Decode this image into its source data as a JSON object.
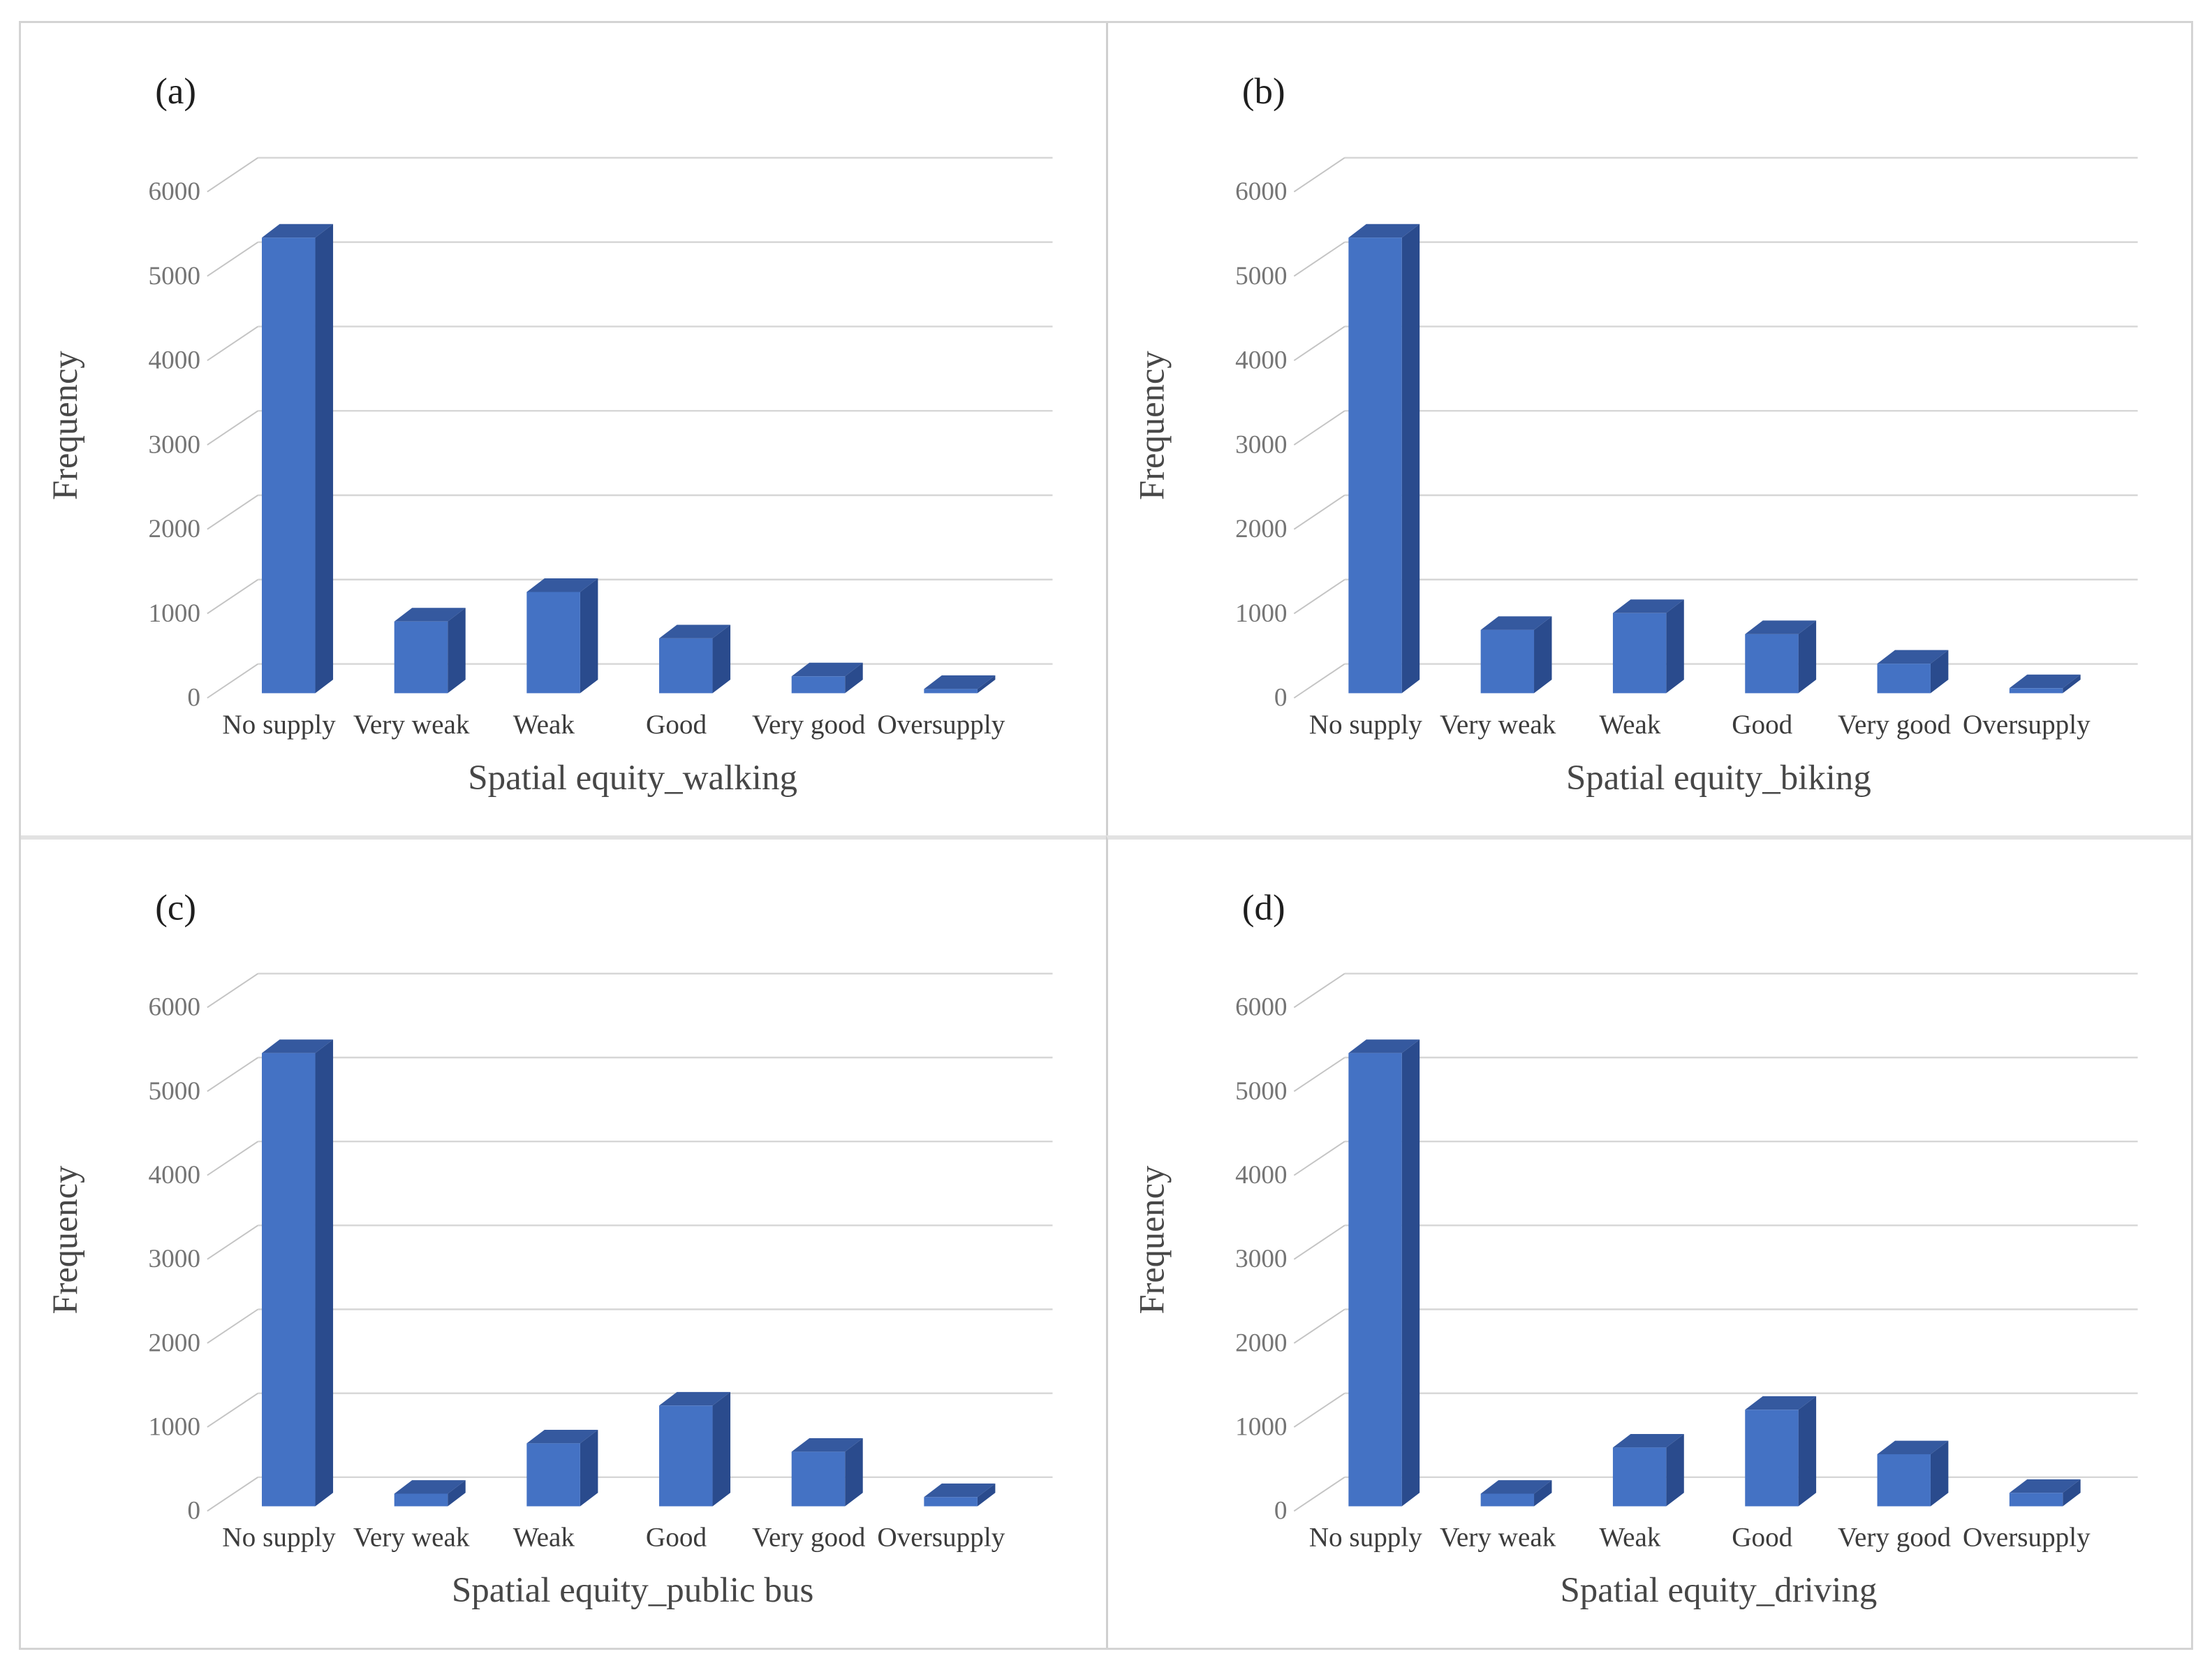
{
  "figure": {
    "background": "#ffffff",
    "border_color": "#d4d4d4",
    "divider_vertical_color": "#cfcfcf",
    "divider_horizontal_color": "#e2e2e2"
  },
  "palette": {
    "bar_front": "#4472C4",
    "bar_top": "#35599F",
    "bar_side": "#2A4B8D",
    "gridline": "#D6D6D6",
    "connector": "#C4C4C4",
    "tick_text": "#757575",
    "category_text": "#3C3C3C",
    "axis_title_text": "#474747",
    "panel_letter_text": "#1E1E1E"
  },
  "chart_data": [
    {
      "type": "bar",
      "style": "3d-column",
      "panel_label": "(a)",
      "xlabel": "Spatial equity_walking",
      "ylabel": "Frequency",
      "categories": [
        "No supply",
        "Very weak",
        "Weak",
        "Good",
        "Very good",
        "Oversupply"
      ],
      "values": [
        5400,
        850,
        1200,
        650,
        200,
        50
      ],
      "ylim": [
        0,
        6000
      ],
      "yticks": [
        6000,
        5000,
        4000,
        3000,
        2000,
        1000,
        0
      ],
      "grid": true,
      "legend": "none"
    },
    {
      "type": "bar",
      "style": "3d-column",
      "panel_label": "(b)",
      "xlabel": "Spatial equity_biking",
      "ylabel": "Frequency",
      "categories": [
        "No supply",
        "Very weak",
        "Weak",
        "Good",
        "Very good",
        "Oversupply"
      ],
      "values": [
        5400,
        750,
        950,
        700,
        350,
        60
      ],
      "ylim": [
        0,
        6000
      ],
      "yticks": [
        6000,
        5000,
        4000,
        3000,
        2000,
        1000,
        0
      ],
      "grid": true,
      "legend": "none"
    },
    {
      "type": "bar",
      "style": "3d-column",
      "panel_label": "(c)",
      "xlabel": "Spatial equity_public bus",
      "ylabel": "Frequency",
      "categories": [
        "No supply",
        "Very weak",
        "Weak",
        "Good",
        "Very good",
        "Oversupply"
      ],
      "values": [
        5400,
        150,
        750,
        1200,
        650,
        110
      ],
      "ylim": [
        0,
        6000
      ],
      "yticks": [
        6000,
        5000,
        4000,
        3000,
        2000,
        1000,
        0
      ],
      "grid": true,
      "legend": "none"
    },
    {
      "type": "bar",
      "style": "3d-column",
      "panel_label": "(d)",
      "xlabel": "Spatial equity_driving",
      "ylabel": "Frequency",
      "categories": [
        "No supply",
        "Very weak",
        "Weak",
        "Good",
        "Very good",
        "Oversupply"
      ],
      "values": [
        5400,
        150,
        700,
        1150,
        620,
        160
      ],
      "ylim": [
        0,
        6000
      ],
      "yticks": [
        6000,
        5000,
        4000,
        3000,
        2000,
        1000,
        0
      ],
      "grid": true,
      "legend": "none"
    }
  ]
}
